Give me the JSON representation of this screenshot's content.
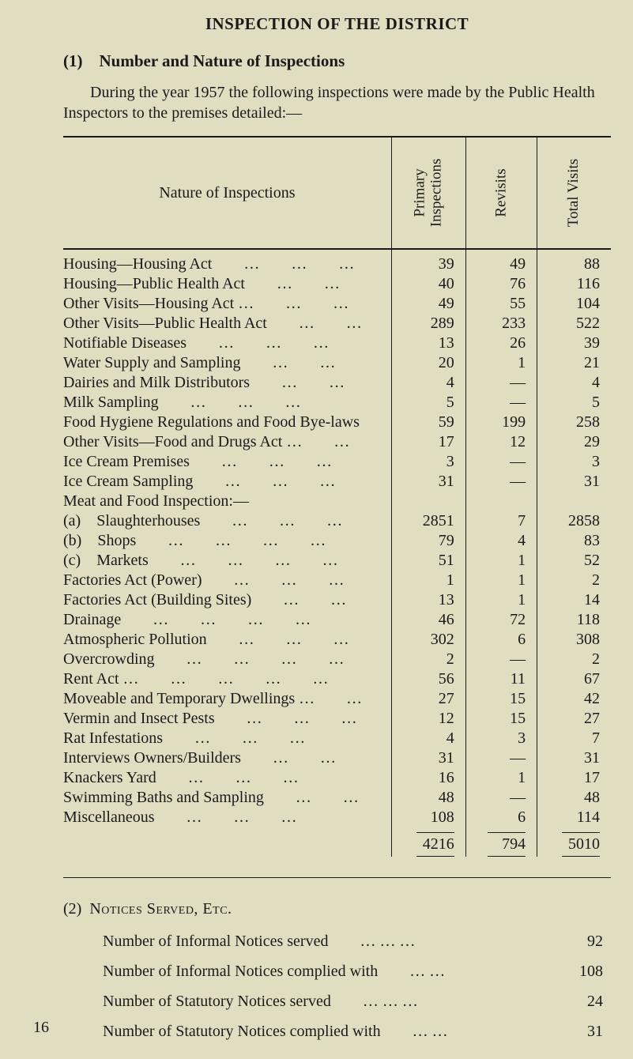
{
  "page": {
    "title": "INSPECTION OF THE DISTRICT",
    "section1": {
      "heading": "(1) Number and Nature of Inspections",
      "intro": "During the year 1957 the following inspections were made by the Public Health Inspectors to the premises detailed:—"
    },
    "table": {
      "header": {
        "nature": "Nature of Inspections",
        "col1_line1": "Primary",
        "col1_line2": "Inspections",
        "col2": "Revisits",
        "col3": "Total Visits"
      },
      "rows": [
        {
          "label": "Housing—Housing Act",
          "p": "39",
          "r": "49",
          "t": "88",
          "dots": 3
        },
        {
          "label": "Housing—Public Health Act",
          "p": "40",
          "r": "76",
          "t": "116",
          "dots": 2
        },
        {
          "label": "Other Visits—Housing Act …",
          "p": "49",
          "r": "55",
          "t": "104",
          "dots": 2
        },
        {
          "label": "Other Visits—Public Health Act",
          "p": "289",
          "r": "233",
          "t": "522",
          "dots": 2
        },
        {
          "label": "Notifiable Diseases",
          "p": "13",
          "r": "26",
          "t": "39",
          "dots": 3
        },
        {
          "label": "Water Supply and Sampling",
          "p": "20",
          "r": "1",
          "t": "21",
          "dots": 2
        },
        {
          "label": "Dairies and Milk Distributors",
          "p": "4",
          "r": "—",
          "t": "4",
          "dots": 2
        },
        {
          "label": "Milk Sampling",
          "p": "5",
          "r": "—",
          "t": "5",
          "dots": 3
        },
        {
          "label": "Food Hygiene Regulations and Food Bye-laws",
          "p": "59",
          "r": "199",
          "t": "258",
          "dots": 0
        },
        {
          "label": "Other Visits—Food and Drugs Act …",
          "p": "17",
          "r": "12",
          "t": "29",
          "dots": 1
        },
        {
          "label": "Ice Cream Premises",
          "p": "3",
          "r": "—",
          "t": "3",
          "dots": 3
        },
        {
          "label": "Ice Cream Sampling",
          "p": "31",
          "r": "—",
          "t": "31",
          "dots": 3
        },
        {
          "label": "Meat and Food Inspection:—",
          "p": "",
          "r": "",
          "t": "",
          "dots": 0
        },
        {
          "label": "(a) Slaughterhouses",
          "p": "2851",
          "r": "7",
          "t": "2858",
          "dots": 3
        },
        {
          "label": "(b) Shops",
          "p": "79",
          "r": "4",
          "t": "83",
          "dots": 4
        },
        {
          "label": "(c) Markets",
          "p": "51",
          "r": "1",
          "t": "52",
          "dots": 4
        },
        {
          "label": "Factories Act (Power)",
          "p": "1",
          "r": "1",
          "t": "2",
          "dots": 3
        },
        {
          "label": "Factories Act (Building Sites)",
          "p": "13",
          "r": "1",
          "t": "14",
          "dots": 2
        },
        {
          "label": "Drainage",
          "p": "46",
          "r": "72",
          "t": "118",
          "dots": 4
        },
        {
          "label": "Atmospheric Pollution",
          "p": "302",
          "r": "6",
          "t": "308",
          "dots": 3
        },
        {
          "label": "Overcrowding",
          "p": "2",
          "r": "—",
          "t": "2",
          "dots": 4
        },
        {
          "label": "Rent Act …",
          "p": "56",
          "r": "11",
          "t": "67",
          "dots": 4
        },
        {
          "label": "Moveable and Temporary Dwellings …",
          "p": "27",
          "r": "15",
          "t": "42",
          "dots": 1
        },
        {
          "label": "Vermin and Insect Pests",
          "p": "12",
          "r": "15",
          "t": "27",
          "dots": 3
        },
        {
          "label": "Rat Infestations",
          "p": "4",
          "r": "3",
          "t": "7",
          "dots": 3
        },
        {
          "label": "Interviews Owners/Builders",
          "p": "31",
          "r": "—",
          "t": "31",
          "dots": 2
        },
        {
          "label": "Knackers Yard",
          "p": "16",
          "r": "1",
          "t": "17",
          "dots": 3
        },
        {
          "label": "Swimming Baths and Sampling",
          "p": "48",
          "r": "—",
          "t": "48",
          "dots": 2
        },
        {
          "label": "Miscellaneous",
          "p": "108",
          "r": "6",
          "t": "114",
          "dots": 3
        }
      ],
      "totals": {
        "p": "4216",
        "r": "794",
        "t": "5010"
      }
    },
    "section2": {
      "heading_num": "(2)",
      "heading_text": "Notices Served, Etc.",
      "items": [
        {
          "label": "Number of Informal Notices served",
          "dots": "…    …    …",
          "value": "92"
        },
        {
          "label": "Number of Informal Notices complied with",
          "dots": "…    …",
          "value": "108"
        },
        {
          "label": "Number of Statutory Notices served",
          "dots": "…    …    …",
          "value": "24"
        },
        {
          "label": "Number of Statutory Notices complied with",
          "dots": "…    …",
          "value": "31"
        }
      ]
    },
    "page_number": "16"
  },
  "style": {
    "background_color": "#e1ddc1",
    "text_color": "#1a1a1a",
    "rule_color": "#1a1a1a",
    "font_family": "Times New Roman",
    "body_font_size_pt": 15,
    "title_font_size_pt": 16
  }
}
